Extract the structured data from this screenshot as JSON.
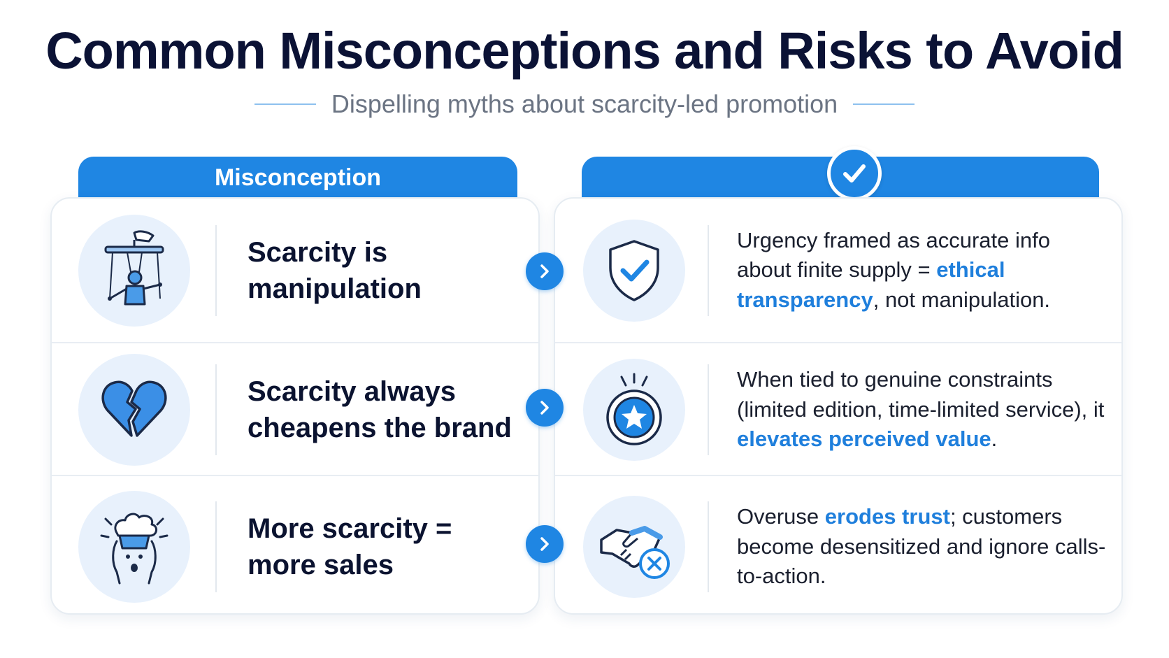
{
  "header": {
    "title": "Common Misconceptions and Risks to Avoid",
    "subtitle": "Dispelling myths about scarcity-led promotion"
  },
  "columns": {
    "left_label": "Misconception",
    "right_label": ""
  },
  "colors": {
    "accent": "#1f86e3",
    "highlight": "#1f7fdc",
    "icon_bg": "#e8f1fc",
    "title": "#0b1235"
  },
  "rows": [
    {
      "myth": "Scarcity is manipulation",
      "myth_icon": "puppet-strings-icon",
      "reality_icon": "shield-check-icon",
      "reality_before": "Urgency framed as accurate info about finite supply = ",
      "reality_highlight": "ethical transparency",
      "reality_after": ", not manipulation."
    },
    {
      "myth": "Scarcity always cheapens the brand",
      "myth_icon": "broken-heart-icon",
      "reality_icon": "star-badge-icon",
      "reality_before": "When tied to genuine constraints (limited edition, time-limited service), it ",
      "reality_highlight": "elevates perceived value",
      "reality_after": "."
    },
    {
      "myth": "More scarcity = more sales",
      "myth_icon": "overwhelmed-head-icon",
      "reality_icon": "broken-handshake-icon",
      "reality_before": "Overuse ",
      "reality_highlight": "erodes trust",
      "reality_after": "; customers become desensitized and ignore calls-to-action."
    }
  ]
}
